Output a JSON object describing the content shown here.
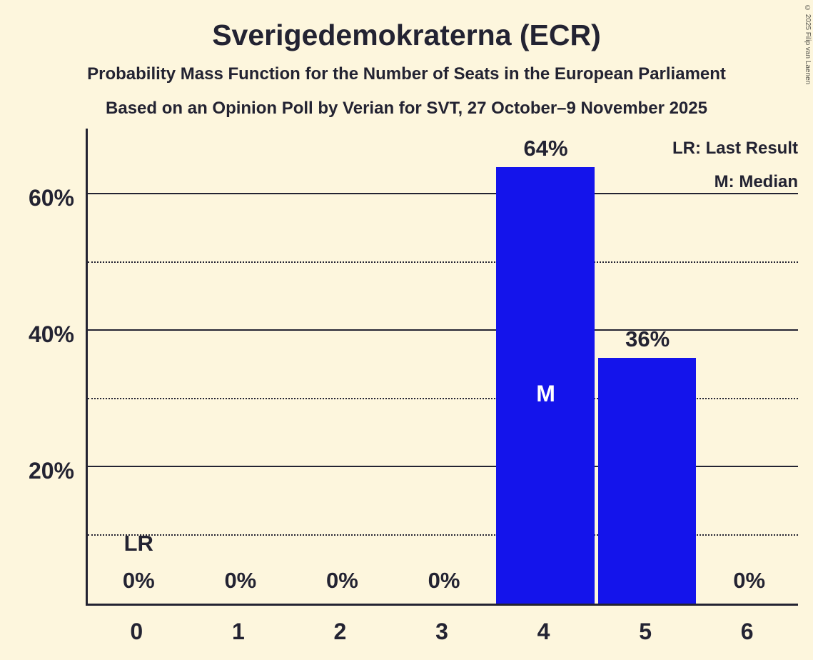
{
  "title": "Sverigedemokraterna (ECR)",
  "subtitle1": "Probability Mass Function for the Number of Seats in the European Parliament",
  "subtitle2": "Based on an Opinion Poll by Verian for SVT, 27 October–9 November 2025",
  "copyright": "© 2025 Filip van Laenen",
  "colors": {
    "background": "#FDF6DD",
    "text": "#232332",
    "bar": "#1414EB",
    "bar_label": "#FFFFFF"
  },
  "chart_data": {
    "type": "bar",
    "title": "Sverigedemokraterna (ECR)",
    "categories": [
      "0",
      "1",
      "2",
      "3",
      "4",
      "5",
      "6"
    ],
    "values": [
      0,
      0,
      0,
      0,
      64,
      36,
      0
    ],
    "value_labels": [
      "0%",
      "0%",
      "0%",
      "0%",
      "64%",
      "36%",
      "0%"
    ],
    "ylim": [
      0,
      70
    ],
    "y_major_ticks": [
      {
        "value": 20,
        "label": "20%"
      },
      {
        "value": 40,
        "label": "40%"
      },
      {
        "value": 60,
        "label": "60%"
      }
    ],
    "y_minor_ticks": [
      10,
      30,
      50
    ],
    "grid": "horizontal (solid major, dotted minor)",
    "legend_position": "top-right",
    "legend": [
      "LR: Last Result",
      "M: Median"
    ],
    "annotations": [
      {
        "category": "0",
        "label": "LR",
        "meaning": "Last Result"
      },
      {
        "category": "4",
        "label": "M",
        "meaning": "Median"
      }
    ]
  }
}
